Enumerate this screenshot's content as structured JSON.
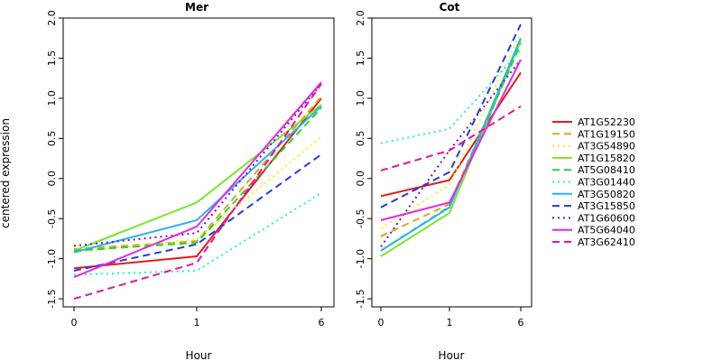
{
  "figure": {
    "ylabel": "centered expression",
    "xlabel_left": "Hour",
    "xlabel_right": "Hour"
  },
  "colors": {
    "AT1G52230": "#e41a1c",
    "AT1G19150": "#e8a020",
    "AT3G54890": "#f0f020",
    "AT1G15820": "#78e628",
    "AT5G08410": "#28d428",
    "AT3G01440": "#28f0c8",
    "AT3G50820": "#28b4f0",
    "AT3G15850": "#1e3ce6",
    "AT1G60600": "#6a14d6",
    "AT5G64040": "#e628e6",
    "AT3G62410": "#e6149a"
  },
  "chart_data": [
    {
      "type": "line",
      "title": "Mer",
      "x": [
        0,
        1,
        6
      ],
      "x_tick_labels": [
        "0",
        "1",
        "6"
      ],
      "xlabel": "Hour",
      "ylabel": "centered expression",
      "ylim": [
        -1.6,
        2.0
      ],
      "y_ticks": [
        -1.5,
        -1.0,
        -0.5,
        0.0,
        0.5,
        1.0,
        1.5,
        2.0
      ],
      "y_tick_labels": [
        "-1.5",
        "-1.0",
        "-0.5",
        "0.0",
        "0.5",
        "1.0",
        "1.5",
        "2.0"
      ],
      "series": [
        {
          "name": "AT1G52230",
          "style": "solid",
          "values": [
            -1.12,
            -0.97,
            1.0
          ]
        },
        {
          "name": "AT1G19150",
          "style": "dashed",
          "values": [
            -0.88,
            -0.78,
            1.02
          ]
        },
        {
          "name": "AT3G54890",
          "style": "dotted",
          "values": [
            -0.92,
            -0.76,
            0.52
          ]
        },
        {
          "name": "AT1G15820",
          "style": "solid",
          "values": [
            -0.9,
            -0.3,
            0.92
          ]
        },
        {
          "name": "AT5G08410",
          "style": "dashed",
          "values": [
            -0.9,
            -0.8,
            0.88
          ]
        },
        {
          "name": "AT3G01440",
          "style": "dotted",
          "values": [
            -1.2,
            -1.15,
            -0.18
          ]
        },
        {
          "name": "AT3G50820",
          "style": "solid",
          "values": [
            -0.92,
            -0.52,
            0.9
          ]
        },
        {
          "name": "AT3G15850",
          "style": "dashed",
          "values": [
            -1.15,
            -0.82,
            0.3
          ]
        },
        {
          "name": "AT1G60600",
          "style": "dotted",
          "values": [
            -0.84,
            -0.68,
            1.18
          ]
        },
        {
          "name": "AT5G64040",
          "style": "solid",
          "values": [
            -1.23,
            -0.6,
            1.2
          ]
        },
        {
          "name": "AT3G62410",
          "style": "dashed",
          "values": [
            -1.5,
            -1.05,
            1.18
          ]
        }
      ]
    },
    {
      "type": "line",
      "title": "Cot",
      "x": [
        0,
        1,
        6
      ],
      "x_tick_labels": [
        "0",
        "1",
        "6"
      ],
      "xlabel": "Hour",
      "ylim": [
        -1.6,
        2.0
      ],
      "y_ticks": [
        -1.5,
        -1.0,
        -0.5,
        0.0,
        0.5,
        1.0,
        1.5,
        2.0
      ],
      "y_tick_labels": [
        "-1.5",
        "-1.0",
        "-0.5",
        "0.0",
        "0.5",
        "1.0",
        "1.5",
        "2.0"
      ],
      "series": [
        {
          "name": "AT1G52230",
          "style": "solid",
          "values": [
            -0.22,
            -0.02,
            1.32
          ]
        },
        {
          "name": "AT1G19150",
          "style": "dashed",
          "values": [
            -0.72,
            -0.32,
            1.72
          ]
        },
        {
          "name": "AT3G54890",
          "style": "dotted",
          "values": [
            -0.62,
            -0.08,
            1.82
          ]
        },
        {
          "name": "AT1G15820",
          "style": "solid",
          "values": [
            -0.97,
            -0.43,
            1.72
          ]
        },
        {
          "name": "AT5G08410",
          "style": "dashed",
          "values": [
            -0.9,
            -0.35,
            1.68
          ]
        },
        {
          "name": "AT3G01440",
          "style": "dotted",
          "values": [
            0.44,
            0.62,
            1.6
          ]
        },
        {
          "name": "AT3G50820",
          "style": "solid",
          "values": [
            -0.9,
            -0.36,
            1.75
          ]
        },
        {
          "name": "AT3G15850",
          "style": "dashed",
          "values": [
            -0.36,
            0.08,
            1.92
          ]
        },
        {
          "name": "AT1G60600",
          "style": "dotted",
          "values": [
            -0.85,
            0.35,
            1.48
          ]
        },
        {
          "name": "AT5G64040",
          "style": "solid",
          "values": [
            -0.52,
            -0.3,
            1.48
          ]
        },
        {
          "name": "AT3G62410",
          "style": "dashed",
          "values": [
            0.1,
            0.35,
            0.9
          ]
        }
      ]
    }
  ],
  "legend": {
    "placement": "right",
    "items": [
      {
        "name": "AT1G52230",
        "style": "solid"
      },
      {
        "name": "AT1G19150",
        "style": "dashed"
      },
      {
        "name": "AT3G54890",
        "style": "dotted"
      },
      {
        "name": "AT1G15820",
        "style": "solid"
      },
      {
        "name": "AT5G08410",
        "style": "dashed"
      },
      {
        "name": "AT3G01440",
        "style": "dotted"
      },
      {
        "name": "AT3G50820",
        "style": "solid"
      },
      {
        "name": "AT3G15850",
        "style": "dashed"
      },
      {
        "name": "AT1G60600",
        "style": "dotted"
      },
      {
        "name": "AT5G64040",
        "style": "solid"
      },
      {
        "name": "AT3G62410",
        "style": "dashed"
      }
    ]
  }
}
